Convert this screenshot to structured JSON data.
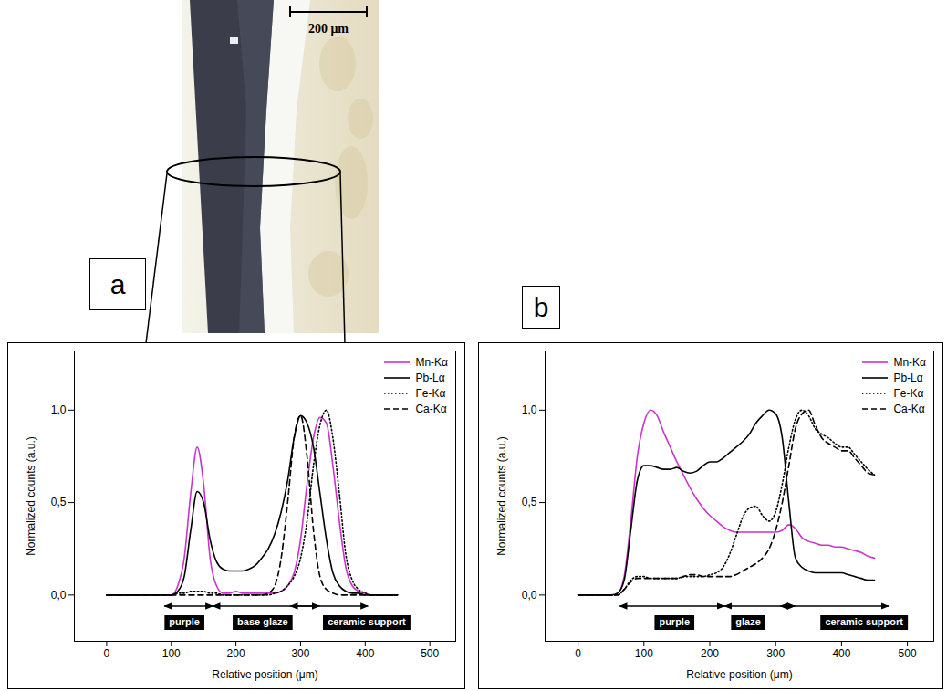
{
  "image": {
    "scale_bar_label": "200 μm"
  },
  "chart_data": [
    {
      "type": "line",
      "panel": "a",
      "x_label": "Relative position (μm)",
      "y_label": "Normalized counts (a.u.)",
      "xlim": [
        -50,
        540
      ],
      "xticks": [
        0,
        100,
        200,
        300,
        400,
        500
      ],
      "ylim": [
        -0.25,
        1.32
      ],
      "yticks": [
        {
          "value": 0,
          "label": "0,0"
        },
        {
          "value": 0.5,
          "label": "0,5"
        },
        {
          "value": 1,
          "label": "1,0"
        }
      ],
      "legend": "top-right",
      "x": [
        0,
        10,
        20,
        30,
        40,
        50,
        60,
        70,
        80,
        90,
        100,
        110,
        120,
        130,
        140,
        150,
        160,
        170,
        180,
        190,
        200,
        210,
        220,
        230,
        240,
        250,
        260,
        270,
        280,
        290,
        300,
        310,
        320,
        330,
        340,
        350,
        360,
        370,
        380,
        390,
        400,
        410,
        420,
        430,
        440,
        450
      ],
      "series": [
        {
          "name": "Mn-Kα",
          "color": "#cc33cc",
          "line_style": "solid",
          "values": [
            0,
            0,
            0,
            0,
            0,
            0,
            0,
            0,
            0,
            0,
            0,
            0.05,
            0.2,
            0.55,
            0.8,
            0.6,
            0.2,
            0.05,
            0.01,
            0.01,
            0.02,
            0.01,
            0.01,
            0.01,
            0.01,
            0.01,
            0.01,
            0.02,
            0.05,
            0.12,
            0.3,
            0.6,
            0.85,
            0.96,
            0.93,
            0.7,
            0.4,
            0.15,
            0.05,
            0.02,
            0.01,
            0,
            0,
            0,
            0,
            0
          ]
        },
        {
          "name": "Pb-Lα",
          "color": "#000000",
          "line_style": "solid",
          "values": [
            0,
            0,
            0,
            0,
            0,
            0,
            0,
            0,
            0,
            0,
            0,
            0.02,
            0.1,
            0.35,
            0.56,
            0.5,
            0.3,
            0.18,
            0.14,
            0.13,
            0.13,
            0.13,
            0.14,
            0.16,
            0.2,
            0.25,
            0.33,
            0.45,
            0.62,
            0.85,
            0.97,
            0.93,
            0.8,
            0.55,
            0.3,
            0.12,
            0.05,
            0.02,
            0.01,
            0.01,
            0,
            0,
            0,
            0,
            0,
            0
          ]
        },
        {
          "name": "Fe-Kα",
          "color": "#000000",
          "line_style": "dotted",
          "values": [
            0,
            0,
            0,
            0,
            0,
            0,
            0,
            0,
            0,
            0,
            0,
            0.01,
            0.01,
            0.02,
            0.02,
            0.02,
            0.01,
            0.01,
            0,
            0,
            0,
            0,
            0,
            0,
            0,
            0,
            0.01,
            0.02,
            0.05,
            0.1,
            0.2,
            0.4,
            0.7,
            0.92,
            1.0,
            0.85,
            0.55,
            0.22,
            0.08,
            0.03,
            0.01,
            0,
            0,
            0,
            0,
            0
          ]
        },
        {
          "name": "Ca-Kα",
          "color": "#000000",
          "line_style": "dashed",
          "values": [
            0,
            0,
            0,
            0,
            0,
            0,
            0,
            0,
            0,
            0,
            0,
            0,
            0,
            0,
            0,
            0,
            0,
            0,
            0,
            0,
            0,
            0,
            0,
            0,
            0,
            0.01,
            0.05,
            0.2,
            0.5,
            0.85,
            0.97,
            0.75,
            0.35,
            0.1,
            0.03,
            0.01,
            0,
            0,
            0,
            0,
            0,
            0,
            0,
            0,
            0,
            0
          ]
        }
      ],
      "annotations": [
        {
          "text": "purple",
          "x": 121,
          "from": 90,
          "to": 165
        },
        {
          "text": "base glaze",
          "x": 242,
          "from": 165,
          "to": 330
        },
        {
          "text": "ceramic support",
          "x": 403,
          "from": 285,
          "to": 405
        }
      ]
    },
    {
      "type": "line",
      "panel": "b",
      "x_label": "Relative position (μm)",
      "y_label": "Normalized counts (a.u.)",
      "xlim": [
        -50,
        540
      ],
      "xticks": [
        0,
        100,
        200,
        300,
        400,
        500
      ],
      "ylim": [
        -0.25,
        1.32
      ],
      "yticks": [
        {
          "value": 0,
          "label": "0,0"
        },
        {
          "value": 0.5,
          "label": "0,5"
        },
        {
          "value": 1,
          "label": "1,0"
        }
      ],
      "legend": "top-right",
      "x": [
        0,
        10,
        20,
        30,
        40,
        50,
        60,
        70,
        80,
        90,
        100,
        110,
        120,
        130,
        140,
        150,
        160,
        170,
        180,
        190,
        200,
        210,
        220,
        230,
        240,
        250,
        260,
        270,
        280,
        290,
        300,
        310,
        320,
        330,
        340,
        350,
        360,
        370,
        380,
        390,
        400,
        410,
        420,
        430,
        440,
        450
      ],
      "series": [
        {
          "name": "Mn-Kα",
          "color": "#cc33cc",
          "line_style": "solid",
          "values": [
            0,
            0,
            0,
            0,
            0,
            0,
            0.01,
            0.1,
            0.4,
            0.75,
            0.93,
            1.0,
            0.97,
            0.88,
            0.8,
            0.72,
            0.65,
            0.58,
            0.52,
            0.47,
            0.43,
            0.4,
            0.37,
            0.35,
            0.34,
            0.34,
            0.34,
            0.34,
            0.34,
            0.34,
            0.34,
            0.35,
            0.38,
            0.36,
            0.31,
            0.29,
            0.28,
            0.27,
            0.27,
            0.26,
            0.26,
            0.25,
            0.24,
            0.23,
            0.21,
            0.2
          ]
        },
        {
          "name": "Pb-Lα",
          "color": "#000000",
          "line_style": "solid",
          "values": [
            0,
            0,
            0,
            0,
            0,
            0,
            0.01,
            0.08,
            0.35,
            0.62,
            0.7,
            0.7,
            0.69,
            0.68,
            0.68,
            0.69,
            0.67,
            0.66,
            0.67,
            0.7,
            0.72,
            0.72,
            0.74,
            0.77,
            0.8,
            0.83,
            0.87,
            0.93,
            0.97,
            1.0,
            0.98,
            0.85,
            0.5,
            0.2,
            0.15,
            0.13,
            0.12,
            0.12,
            0.12,
            0.12,
            0.12,
            0.11,
            0.1,
            0.09,
            0.08,
            0.08
          ]
        },
        {
          "name": "Fe-Kα",
          "color": "#000000",
          "line_style": "dotted",
          "values": [
            0,
            0,
            0,
            0,
            0,
            0,
            0,
            0.03,
            0.08,
            0.1,
            0.1,
            0.09,
            0.09,
            0.09,
            0.09,
            0.09,
            0.1,
            0.1,
            0.1,
            0.1,
            0.11,
            0.12,
            0.15,
            0.22,
            0.32,
            0.42,
            0.47,
            0.48,
            0.43,
            0.4,
            0.45,
            0.6,
            0.8,
            0.95,
            1.0,
            0.97,
            0.9,
            0.87,
            0.85,
            0.82,
            0.8,
            0.8,
            0.76,
            0.72,
            0.68,
            0.65
          ]
        },
        {
          "name": "Ca-Kα",
          "color": "#000000",
          "line_style": "dashed",
          "values": [
            0,
            0,
            0,
            0,
            0,
            0,
            0,
            0.03,
            0.07,
            0.09,
            0.09,
            0.09,
            0.09,
            0.09,
            0.09,
            0.09,
            0.1,
            0.11,
            0.11,
            0.1,
            0.1,
            0.1,
            0.1,
            0.1,
            0.11,
            0.13,
            0.15,
            0.17,
            0.2,
            0.25,
            0.35,
            0.5,
            0.7,
            0.9,
            0.98,
            1.0,
            0.92,
            0.85,
            0.82,
            0.8,
            0.78,
            0.78,
            0.74,
            0.7,
            0.66,
            0.65
          ]
        }
      ],
      "annotations": [
        {
          "text": "purple",
          "x": 147,
          "from": 64,
          "to": 223
        },
        {
          "text": "glaze",
          "x": 259,
          "from": 223,
          "to": 330
        },
        {
          "text": "ceramic support",
          "x": 435,
          "from": 308,
          "to": 472
        }
      ]
    }
  ]
}
